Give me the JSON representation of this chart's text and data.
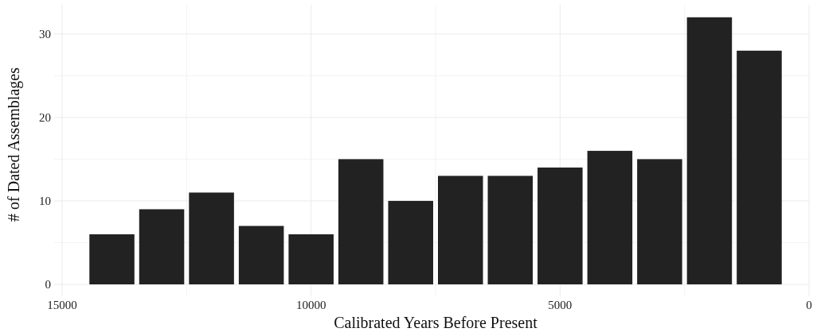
{
  "chart_data": {
    "type": "histogram",
    "xlabel": "Calibrated Years Before Present",
    "ylabel": "# of Dated Assemblages",
    "bins": [
      14500,
      13500,
      12500,
      11500,
      10500,
      9500,
      8500,
      7500,
      6500,
      5500,
      4500,
      3500,
      2500,
      1500,
      500
    ],
    "values": [
      6,
      9,
      11,
      7,
      6,
      15,
      10,
      13,
      13,
      14,
      16,
      15,
      32,
      28
    ],
    "color": "#222222",
    "xlim": [
      15000,
      0
    ],
    "xticks": [
      15000,
      {
        "value": 12500,
        "label": null
      },
      10000,
      {
        "value": 7500,
        "label": null
      },
      5000,
      {
        "value": 2500,
        "label": null
      },
      0
    ],
    "ylim": [
      0,
      33.5
    ],
    "yticks": [
      0,
      {
        "value": 5,
        "label": null
      },
      10,
      {
        "value": 15,
        "label": null
      },
      20,
      {
        "value": 25,
        "label": null
      },
      30
    ],
    "grid": true
  }
}
